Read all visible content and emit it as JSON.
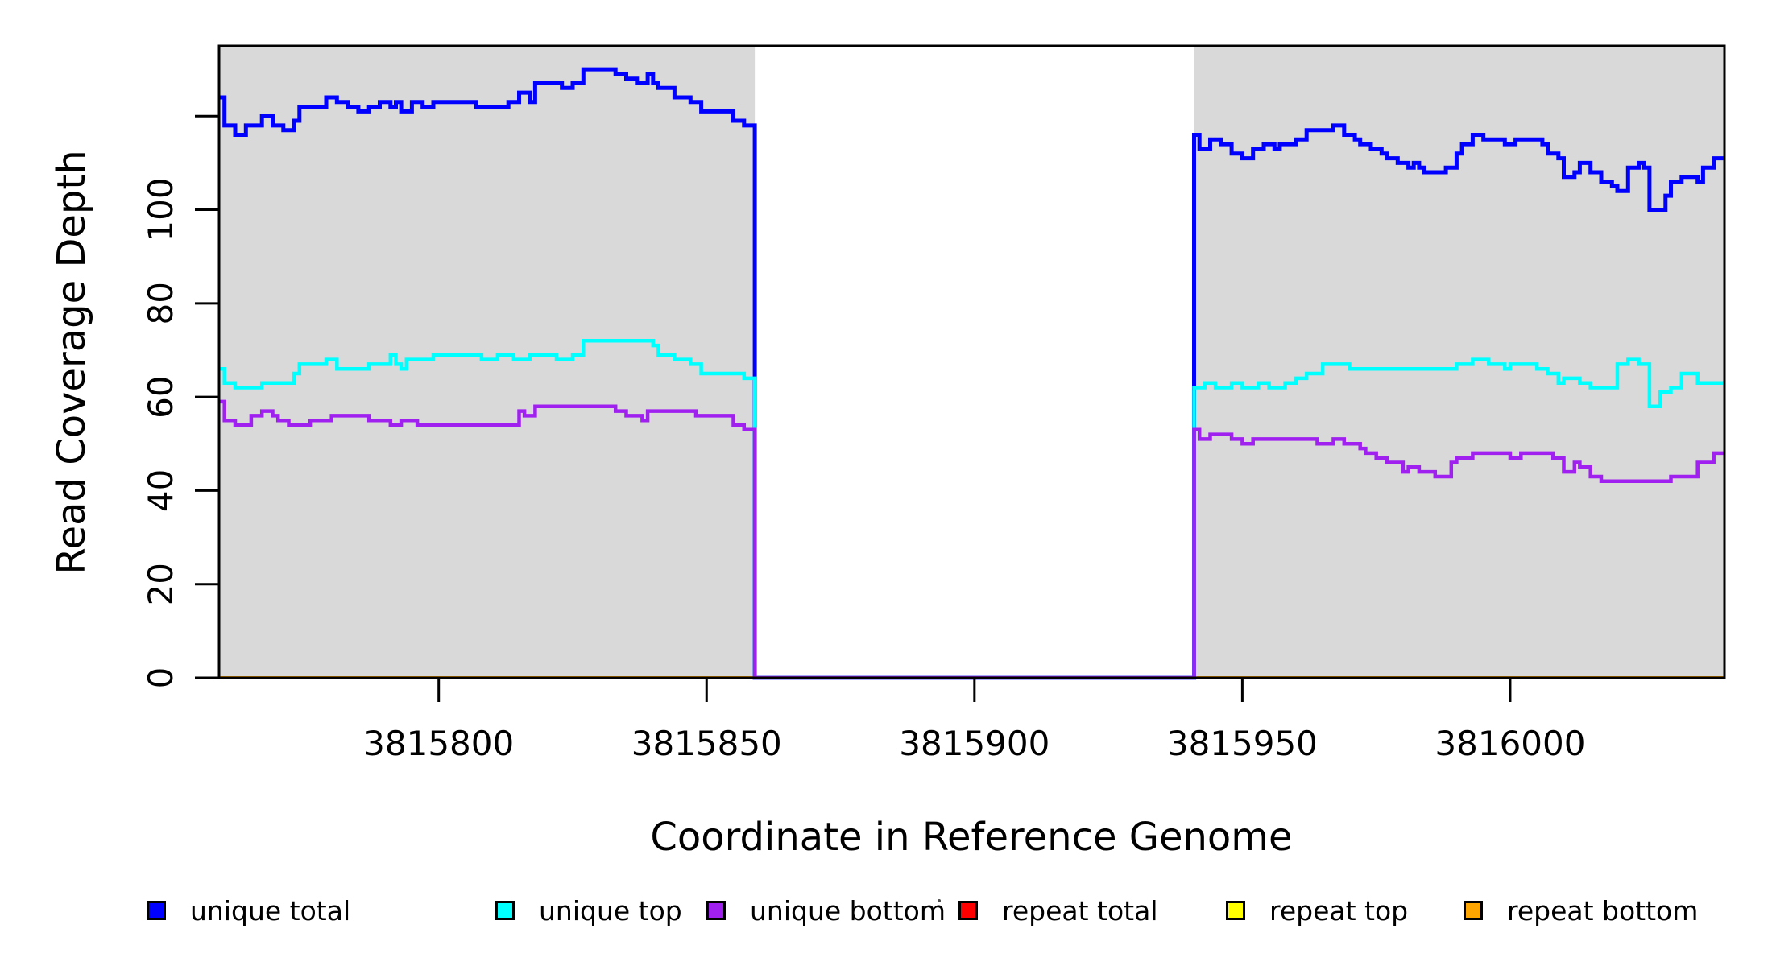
{
  "figure": {
    "xlabel": "Coordinate in Reference Genome",
    "ylabel": "Read Coverage Depth",
    "background_color": "#FFFFFF",
    "panel_fill_color": "#D9D9D9",
    "border_color": "#000000",
    "zero_gap_line_color": "#A020F0"
  },
  "legend": {
    "items": [
      {
        "label": "unique total",
        "color": "#0000FF"
      },
      {
        "label": "unique top",
        "color": "#00FFFF"
      },
      {
        "label": "unique bottom",
        "color": "#A020F0"
      },
      {
        "label": "repeat total",
        "color": "#FF0000"
      },
      {
        "label": "repeat top",
        "color": "#FFFF00"
      },
      {
        "label": "repeat bottom",
        "color": "#FFA500"
      }
    ]
  },
  "chart_data": {
    "type": "line",
    "line_style": "step-after",
    "title": "",
    "xlabel": "Coordinate in Reference Genome",
    "ylabel": "Read Coverage Depth",
    "xlim": [
      3815759,
      3816040
    ],
    "ylim": [
      0,
      135
    ],
    "x_ticks": [
      3815800,
      3815850,
      3815900,
      3815950,
      3816000
    ],
    "x_tick_labels": [
      "3815800",
      "3815850",
      "3815900",
      "3815950",
      "3816000"
    ],
    "y_ticks": [
      0,
      20,
      40,
      60,
      80,
      100,
      120
    ],
    "y_tick_labels": [
      "0",
      "20",
      "40",
      "60",
      "80",
      "100",
      ""
    ],
    "grid": false,
    "legend_position": "bottom",
    "shaded_regions": [
      {
        "name": "covered-region-left",
        "x1": 3815759,
        "x2": 3815859
      },
      {
        "name": "covered-region-right",
        "x1": 3815941,
        "x2": 3816040
      }
    ],
    "uncovered_gap": {
      "x1": 3815859,
      "x2": 3815941,
      "value": 0
    },
    "series": [
      {
        "name": "repeat total",
        "color": "#FF0000",
        "width": 4,
        "points": [
          [
            3815759,
            0
          ],
          [
            3816040,
            0
          ]
        ]
      },
      {
        "name": "repeat top",
        "color": "#FFFF00",
        "width": 4,
        "points": [
          [
            3815759,
            0
          ],
          [
            3816040,
            0
          ]
        ]
      },
      {
        "name": "repeat bottom",
        "color": "#FFA500",
        "width": 4,
        "points": [
          [
            3815759,
            0
          ],
          [
            3816040,
            0
          ]
        ]
      },
      {
        "name": "unique total",
        "color": "#0000FF",
        "width": 5,
        "points": [
          [
            3815759,
            124
          ],
          [
            3815760,
            118
          ],
          [
            3815762,
            116
          ],
          [
            3815764,
            118
          ],
          [
            3815767,
            120
          ],
          [
            3815769,
            118
          ],
          [
            3815771,
            117
          ],
          [
            3815773,
            119
          ],
          [
            3815774,
            122
          ],
          [
            3815779,
            124
          ],
          [
            3815781,
            123
          ],
          [
            3815783,
            122
          ],
          [
            3815785,
            121
          ],
          [
            3815787,
            122
          ],
          [
            3815789,
            123
          ],
          [
            3815791,
            122
          ],
          [
            3815792,
            123
          ],
          [
            3815793,
            121
          ],
          [
            3815795,
            123
          ],
          [
            3815797,
            122
          ],
          [
            3815799,
            123
          ],
          [
            3815807,
            122
          ],
          [
            3815813,
            123
          ],
          [
            3815815,
            125
          ],
          [
            3815817,
            123
          ],
          [
            3815818,
            127
          ],
          [
            3815823,
            126
          ],
          [
            3815825,
            127
          ],
          [
            3815827,
            130
          ],
          [
            3815833,
            129
          ],
          [
            3815835,
            128
          ],
          [
            3815837,
            127
          ],
          [
            3815839,
            129
          ],
          [
            3815840,
            127
          ],
          [
            3815841,
            126
          ],
          [
            3815844,
            124
          ],
          [
            3815847,
            123
          ],
          [
            3815849,
            121
          ],
          [
            3815855,
            119
          ],
          [
            3815857,
            118
          ],
          [
            3815859,
            0
          ],
          [
            3815941,
            116
          ],
          [
            3815942,
            113
          ],
          [
            3815944,
            115
          ],
          [
            3815946,
            114
          ],
          [
            3815948,
            112
          ],
          [
            3815950,
            111
          ],
          [
            3815952,
            113
          ],
          [
            3815954,
            114
          ],
          [
            3815956,
            113
          ],
          [
            3815957,
            114
          ],
          [
            3815960,
            115
          ],
          [
            3815962,
            117
          ],
          [
            3815967,
            118
          ],
          [
            3815969,
            116
          ],
          [
            3815971,
            115
          ],
          [
            3815972,
            114
          ],
          [
            3815974,
            113
          ],
          [
            3815976,
            112
          ],
          [
            3815977,
            111
          ],
          [
            3815979,
            110
          ],
          [
            3815981,
            109
          ],
          [
            3815982,
            110
          ],
          [
            3815983,
            109
          ],
          [
            3815984,
            108
          ],
          [
            3815988,
            109
          ],
          [
            3815990,
            112
          ],
          [
            3815991,
            114
          ],
          [
            3815993,
            116
          ],
          [
            3815995,
            115
          ],
          [
            3815999,
            114
          ],
          [
            3816001,
            115
          ],
          [
            3816006,
            114
          ],
          [
            3816007,
            112
          ],
          [
            3816009,
            111
          ],
          [
            3816010,
            107
          ],
          [
            3816012,
            108
          ],
          [
            3816013,
            110
          ],
          [
            3816015,
            108
          ],
          [
            3816017,
            106
          ],
          [
            3816019,
            105
          ],
          [
            3816020,
            104
          ],
          [
            3816022,
            109
          ],
          [
            3816024,
            110
          ],
          [
            3816025,
            109
          ],
          [
            3816026,
            100
          ],
          [
            3816029,
            103
          ],
          [
            3816030,
            106
          ],
          [
            3816032,
            107
          ],
          [
            3816035,
            106
          ],
          [
            3816036,
            109
          ],
          [
            3816038,
            111
          ],
          [
            3816040,
            111
          ]
        ]
      },
      {
        "name": "unique top",
        "color": "#00FFFF",
        "width": 4.5,
        "points": [
          [
            3815759,
            66
          ],
          [
            3815760,
            63
          ],
          [
            3815762,
            62
          ],
          [
            3815767,
            63
          ],
          [
            3815773,
            65
          ],
          [
            3815774,
            67
          ],
          [
            3815779,
            68
          ],
          [
            3815781,
            66
          ],
          [
            3815787,
            67
          ],
          [
            3815791,
            69
          ],
          [
            3815792,
            67
          ],
          [
            3815793,
            66
          ],
          [
            3815794,
            68
          ],
          [
            3815799,
            69
          ],
          [
            3815808,
            68
          ],
          [
            3815811,
            69
          ],
          [
            3815814,
            68
          ],
          [
            3815817,
            69
          ],
          [
            3815822,
            68
          ],
          [
            3815825,
            69
          ],
          [
            3815827,
            72
          ],
          [
            3815840,
            71
          ],
          [
            3815841,
            69
          ],
          [
            3815844,
            68
          ],
          [
            3815847,
            67
          ],
          [
            3815849,
            65
          ],
          [
            3815857,
            64
          ],
          [
            3815859,
            0
          ],
          [
            3815941,
            62
          ],
          [
            3815943,
            63
          ],
          [
            3815945,
            62
          ],
          [
            3815948,
            63
          ],
          [
            3815950,
            62
          ],
          [
            3815953,
            63
          ],
          [
            3815955,
            62
          ],
          [
            3815958,
            63
          ],
          [
            3815960,
            64
          ],
          [
            3815962,
            65
          ],
          [
            3815965,
            67
          ],
          [
            3815970,
            66
          ],
          [
            3815990,
            67
          ],
          [
            3815993,
            68
          ],
          [
            3815996,
            67
          ],
          [
            3815999,
            66
          ],
          [
            3816000,
            67
          ],
          [
            3816005,
            66
          ],
          [
            3816007,
            65
          ],
          [
            3816009,
            63
          ],
          [
            3816010,
            64
          ],
          [
            3816013,
            63
          ],
          [
            3816015,
            62
          ],
          [
            3816020,
            67
          ],
          [
            3816022,
            68
          ],
          [
            3816024,
            67
          ],
          [
            3816026,
            58
          ],
          [
            3816028,
            61
          ],
          [
            3816030,
            62
          ],
          [
            3816032,
            65
          ],
          [
            3816035,
            63
          ],
          [
            3816040,
            63
          ]
        ]
      },
      {
        "name": "unique bottom",
        "color": "#A020F0",
        "width": 4.5,
        "points": [
          [
            3815759,
            59
          ],
          [
            3815760,
            55
          ],
          [
            3815762,
            54
          ],
          [
            3815765,
            56
          ],
          [
            3815767,
            57
          ],
          [
            3815769,
            56
          ],
          [
            3815770,
            55
          ],
          [
            3815772,
            54
          ],
          [
            3815776,
            55
          ],
          [
            3815780,
            56
          ],
          [
            3815787,
            55
          ],
          [
            3815791,
            54
          ],
          [
            3815793,
            55
          ],
          [
            3815796,
            54
          ],
          [
            3815815,
            57
          ],
          [
            3815816,
            56
          ],
          [
            3815818,
            58
          ],
          [
            3815833,
            57
          ],
          [
            3815835,
            56
          ],
          [
            3815838,
            55
          ],
          [
            3815839,
            57
          ],
          [
            3815848,
            56
          ],
          [
            3815855,
            54
          ],
          [
            3815857,
            53
          ],
          [
            3815859,
            0
          ],
          [
            3815941,
            53
          ],
          [
            3815942,
            51
          ],
          [
            3815944,
            52
          ],
          [
            3815948,
            51
          ],
          [
            3815950,
            50
          ],
          [
            3815952,
            51
          ],
          [
            3815964,
            50
          ],
          [
            3815967,
            51
          ],
          [
            3815969,
            50
          ],
          [
            3815972,
            49
          ],
          [
            3815973,
            48
          ],
          [
            3815975,
            47
          ],
          [
            3815977,
            46
          ],
          [
            3815980,
            44
          ],
          [
            3815981,
            45
          ],
          [
            3815983,
            44
          ],
          [
            3815986,
            43
          ],
          [
            3815989,
            46
          ],
          [
            3815990,
            47
          ],
          [
            3815993,
            48
          ],
          [
            3816000,
            47
          ],
          [
            3816002,
            48
          ],
          [
            3816008,
            47
          ],
          [
            3816010,
            44
          ],
          [
            3816012,
            46
          ],
          [
            3816013,
            45
          ],
          [
            3816015,
            43
          ],
          [
            3816017,
            42
          ],
          [
            3816030,
            43
          ],
          [
            3816035,
            46
          ],
          [
            3816038,
            48
          ],
          [
            3816040,
            48
          ]
        ]
      }
    ]
  }
}
